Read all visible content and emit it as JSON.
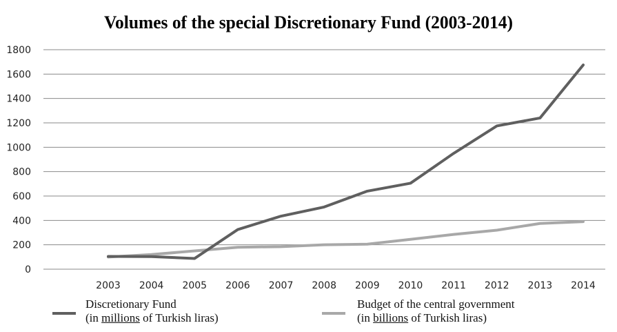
{
  "chart_data": {
    "type": "line",
    "title": "Volumes of the special Discretionary Fund (2003-2014)",
    "xlabel": "",
    "ylabel": "",
    "ylim": [
      0,
      1800
    ],
    "yticks": [
      0,
      200,
      400,
      600,
      800,
      1000,
      1200,
      1400,
      1600,
      1800
    ],
    "grid": true,
    "legend_position": "bottom",
    "categories": [
      "2003",
      "2004",
      "2005",
      "2006",
      "2007",
      "2008",
      "2009",
      "2010",
      "2011",
      "2012",
      "2013",
      "2014"
    ],
    "series": [
      {
        "name": "Discretionary Fund",
        "unit_note_prefix": "(in ",
        "unit_note_emph": "millions",
        "unit_note_suffix": " of Turkish liras)",
        "color": "#5f5f5f",
        "values": [
          105,
          103,
          88,
          325,
          435,
          510,
          640,
          705,
          950,
          1175,
          1240,
          1675
        ]
      },
      {
        "name": "Budget of the central government",
        "unit_note_prefix": "(in ",
        "unit_note_emph": "billions",
        "unit_note_suffix": " of Turkish liras)",
        "color": "#a8a8a8",
        "values": [
          100,
          120,
          150,
          180,
          185,
          200,
          205,
          245,
          285,
          320,
          375,
          390
        ]
      }
    ]
  }
}
